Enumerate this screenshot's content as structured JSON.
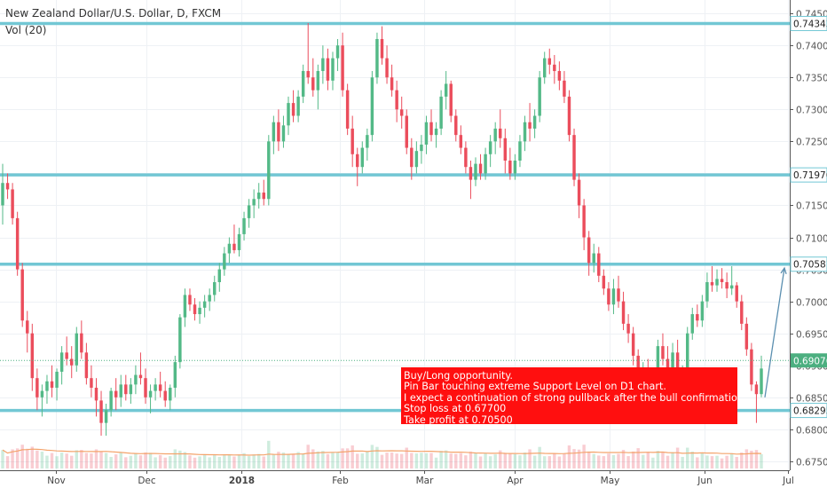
{
  "header": {
    "title": "New Zealand Dollar/U.S. Dollar, D, FXCM",
    "volume_label": "Vol (20)"
  },
  "annotation": {
    "lines": [
      "Buy/Long opportunity.",
      "Pin Bar touching extreme Support Level on D1 chart.",
      "I expect a continuation of strong pullback after the bull confirmation candle.",
      "Stop loss at 0.67700",
      "Take profit at 0.70500"
    ]
  },
  "colors": {
    "up": "#53b987",
    "down": "#eb4d5c",
    "level_line": "#72c7d4",
    "annotation_bg": "#ff0f0f",
    "current_price_label": "#4caf80",
    "volume_ma": "#f4a36b"
  },
  "chart_data": {
    "type": "candlestick",
    "symbol": "NZDUSD",
    "timeframe": "D",
    "x_ticks": [
      "Nov",
      "Dec",
      "2018",
      "Feb",
      "Mar",
      "Apr",
      "May",
      "Jun",
      "Jul"
    ],
    "y_ticks": [
      0.675,
      0.68,
      0.685,
      0.69,
      0.695,
      0.7,
      0.705,
      0.71,
      0.715,
      0.72,
      0.725,
      0.73,
      0.735,
      0.74,
      0.745
    ],
    "y_tick_labels": [
      "0.67500",
      "0.68000",
      "0.68500",
      "0.69000",
      "0.69500",
      "0.70000",
      "0.70500",
      "0.71000",
      "0.71500",
      "0.72000",
      "0.72500",
      "0.73000",
      "0.73500",
      "0.74000",
      "0.74500"
    ],
    "ylim": [
      0.6736,
      0.7471
    ],
    "horizontal_levels": [
      {
        "value": 0.74343,
        "label": "0.74343"
      },
      {
        "value": 0.71976,
        "label": "0.71976"
      },
      {
        "value": 0.70581,
        "label": "0.70581"
      },
      {
        "value": 0.68295,
        "label": "0.68295"
      }
    ],
    "current_price": {
      "value": 0.69076,
      "label": "0.69076"
    },
    "projection_arrow": {
      "from": 0.685,
      "to": 0.7052
    },
    "candles": [
      {
        "o": 0.715,
        "h": 0.7215,
        "l": 0.712,
        "c": 0.7185
      },
      {
        "o": 0.7185,
        "h": 0.72,
        "l": 0.716,
        "c": 0.7175
      },
      {
        "o": 0.7175,
        "h": 0.7185,
        "l": 0.712,
        "c": 0.713
      },
      {
        "o": 0.713,
        "h": 0.714,
        "l": 0.704,
        "c": 0.705
      },
      {
        "o": 0.705,
        "h": 0.706,
        "l": 0.696,
        "c": 0.697
      },
      {
        "o": 0.697,
        "h": 0.6985,
        "l": 0.692,
        "c": 0.695
      },
      {
        "o": 0.695,
        "h": 0.6965,
        "l": 0.686,
        "c": 0.688
      },
      {
        "o": 0.688,
        "h": 0.6895,
        "l": 0.683,
        "c": 0.685
      },
      {
        "o": 0.685,
        "h": 0.687,
        "l": 0.682,
        "c": 0.686
      },
      {
        "o": 0.686,
        "h": 0.6885,
        "l": 0.684,
        "c": 0.6875
      },
      {
        "o": 0.6875,
        "h": 0.69,
        "l": 0.685,
        "c": 0.6865
      },
      {
        "o": 0.6865,
        "h": 0.6895,
        "l": 0.6845,
        "c": 0.689
      },
      {
        "o": 0.689,
        "h": 0.693,
        "l": 0.687,
        "c": 0.692
      },
      {
        "o": 0.692,
        "h": 0.6945,
        "l": 0.69,
        "c": 0.691
      },
      {
        "o": 0.691,
        "h": 0.693,
        "l": 0.688,
        "c": 0.69
      },
      {
        "o": 0.69,
        "h": 0.696,
        "l": 0.689,
        "c": 0.695
      },
      {
        "o": 0.695,
        "h": 0.697,
        "l": 0.691,
        "c": 0.692
      },
      {
        "o": 0.692,
        "h": 0.6935,
        "l": 0.687,
        "c": 0.688
      },
      {
        "o": 0.688,
        "h": 0.69,
        "l": 0.685,
        "c": 0.6865
      },
      {
        "o": 0.6865,
        "h": 0.688,
        "l": 0.682,
        "c": 0.6845
      },
      {
        "o": 0.6845,
        "h": 0.686,
        "l": 0.679,
        "c": 0.681
      },
      {
        "o": 0.681,
        "h": 0.684,
        "l": 0.679,
        "c": 0.683
      },
      {
        "o": 0.683,
        "h": 0.6865,
        "l": 0.682,
        "c": 0.686
      },
      {
        "o": 0.686,
        "h": 0.688,
        "l": 0.683,
        "c": 0.685
      },
      {
        "o": 0.685,
        "h": 0.6885,
        "l": 0.6835,
        "c": 0.687
      },
      {
        "o": 0.687,
        "h": 0.6885,
        "l": 0.6845,
        "c": 0.6855
      },
      {
        "o": 0.6855,
        "h": 0.688,
        "l": 0.684,
        "c": 0.687
      },
      {
        "o": 0.687,
        "h": 0.69,
        "l": 0.6855,
        "c": 0.6885
      },
      {
        "o": 0.6885,
        "h": 0.692,
        "l": 0.687,
        "c": 0.688
      },
      {
        "o": 0.688,
        "h": 0.6895,
        "l": 0.684,
        "c": 0.685
      },
      {
        "o": 0.685,
        "h": 0.687,
        "l": 0.6825,
        "c": 0.686
      },
      {
        "o": 0.686,
        "h": 0.688,
        "l": 0.6845,
        "c": 0.687
      },
      {
        "o": 0.687,
        "h": 0.689,
        "l": 0.685,
        "c": 0.686
      },
      {
        "o": 0.686,
        "h": 0.6875,
        "l": 0.6835,
        "c": 0.6845
      },
      {
        "o": 0.6845,
        "h": 0.687,
        "l": 0.683,
        "c": 0.6865
      },
      {
        "o": 0.6865,
        "h": 0.6915,
        "l": 0.685,
        "c": 0.6905
      },
      {
        "o": 0.6905,
        "h": 0.698,
        "l": 0.6895,
        "c": 0.6975
      },
      {
        "o": 0.6975,
        "h": 0.702,
        "l": 0.696,
        "c": 0.701
      },
      {
        "o": 0.701,
        "h": 0.702,
        "l": 0.6985,
        "c": 0.6995
      },
      {
        "o": 0.6995,
        "h": 0.7005,
        "l": 0.697,
        "c": 0.698
      },
      {
        "o": 0.698,
        "h": 0.7,
        "l": 0.6965,
        "c": 0.699
      },
      {
        "o": 0.699,
        "h": 0.701,
        "l": 0.6975,
        "c": 0.7
      },
      {
        "o": 0.7,
        "h": 0.702,
        "l": 0.6985,
        "c": 0.701
      },
      {
        "o": 0.701,
        "h": 0.704,
        "l": 0.7,
        "c": 0.703
      },
      {
        "o": 0.703,
        "h": 0.706,
        "l": 0.7015,
        "c": 0.705
      },
      {
        "o": 0.705,
        "h": 0.7085,
        "l": 0.704,
        "c": 0.7075
      },
      {
        "o": 0.7075,
        "h": 0.71,
        "l": 0.706,
        "c": 0.709
      },
      {
        "o": 0.709,
        "h": 0.712,
        "l": 0.7075,
        "c": 0.708
      },
      {
        "o": 0.708,
        "h": 0.7115,
        "l": 0.707,
        "c": 0.7105
      },
      {
        "o": 0.7105,
        "h": 0.714,
        "l": 0.7095,
        "c": 0.713
      },
      {
        "o": 0.713,
        "h": 0.716,
        "l": 0.7115,
        "c": 0.715
      },
      {
        "o": 0.715,
        "h": 0.7175,
        "l": 0.713,
        "c": 0.716
      },
      {
        "o": 0.716,
        "h": 0.7185,
        "l": 0.7145,
        "c": 0.717
      },
      {
        "o": 0.717,
        "h": 0.719,
        "l": 0.715,
        "c": 0.716
      },
      {
        "o": 0.716,
        "h": 0.726,
        "l": 0.715,
        "c": 0.725
      },
      {
        "o": 0.725,
        "h": 0.729,
        "l": 0.723,
        "c": 0.728
      },
      {
        "o": 0.728,
        "h": 0.73,
        "l": 0.7235,
        "c": 0.725
      },
      {
        "o": 0.725,
        "h": 0.729,
        "l": 0.724,
        "c": 0.7275
      },
      {
        "o": 0.7275,
        "h": 0.732,
        "l": 0.726,
        "c": 0.731
      },
      {
        "o": 0.731,
        "h": 0.733,
        "l": 0.728,
        "c": 0.729
      },
      {
        "o": 0.729,
        "h": 0.733,
        "l": 0.728,
        "c": 0.732
      },
      {
        "o": 0.732,
        "h": 0.737,
        "l": 0.731,
        "c": 0.736
      },
      {
        "o": 0.736,
        "h": 0.7435,
        "l": 0.734,
        "c": 0.735
      },
      {
        "o": 0.735,
        "h": 0.738,
        "l": 0.732,
        "c": 0.733
      },
      {
        "o": 0.733,
        "h": 0.737,
        "l": 0.73,
        "c": 0.736
      },
      {
        "o": 0.736,
        "h": 0.74,
        "l": 0.734,
        "c": 0.738
      },
      {
        "o": 0.738,
        "h": 0.7395,
        "l": 0.733,
        "c": 0.7345
      },
      {
        "o": 0.7345,
        "h": 0.739,
        "l": 0.733,
        "c": 0.738
      },
      {
        "o": 0.738,
        "h": 0.741,
        "l": 0.736,
        "c": 0.74
      },
      {
        "o": 0.74,
        "h": 0.742,
        "l": 0.732,
        "c": 0.733
      },
      {
        "o": 0.733,
        "h": 0.734,
        "l": 0.726,
        "c": 0.727
      },
      {
        "o": 0.727,
        "h": 0.729,
        "l": 0.721,
        "c": 0.723
      },
      {
        "o": 0.723,
        "h": 0.724,
        "l": 0.718,
        "c": 0.721
      },
      {
        "o": 0.721,
        "h": 0.725,
        "l": 0.72,
        "c": 0.724
      },
      {
        "o": 0.724,
        "h": 0.727,
        "l": 0.722,
        "c": 0.726
      },
      {
        "o": 0.726,
        "h": 0.736,
        "l": 0.725,
        "c": 0.735
      },
      {
        "o": 0.735,
        "h": 0.742,
        "l": 0.734,
        "c": 0.741
      },
      {
        "o": 0.741,
        "h": 0.743,
        "l": 0.737,
        "c": 0.738
      },
      {
        "o": 0.738,
        "h": 0.74,
        "l": 0.734,
        "c": 0.735
      },
      {
        "o": 0.735,
        "h": 0.737,
        "l": 0.732,
        "c": 0.733
      },
      {
        "o": 0.733,
        "h": 0.7345,
        "l": 0.728,
        "c": 0.73
      },
      {
        "o": 0.73,
        "h": 0.732,
        "l": 0.727,
        "c": 0.729
      },
      {
        "o": 0.729,
        "h": 0.73,
        "l": 0.723,
        "c": 0.724
      },
      {
        "o": 0.724,
        "h": 0.7255,
        "l": 0.719,
        "c": 0.721
      },
      {
        "o": 0.721,
        "h": 0.725,
        "l": 0.72,
        "c": 0.7235
      },
      {
        "o": 0.7235,
        "h": 0.726,
        "l": 0.7215,
        "c": 0.7245
      },
      {
        "o": 0.7245,
        "h": 0.729,
        "l": 0.723,
        "c": 0.728
      },
      {
        "o": 0.728,
        "h": 0.73,
        "l": 0.725,
        "c": 0.726
      },
      {
        "o": 0.726,
        "h": 0.728,
        "l": 0.724,
        "c": 0.727
      },
      {
        "o": 0.727,
        "h": 0.733,
        "l": 0.726,
        "c": 0.732
      },
      {
        "o": 0.732,
        "h": 0.736,
        "l": 0.73,
        "c": 0.734
      },
      {
        "o": 0.734,
        "h": 0.7345,
        "l": 0.728,
        "c": 0.729
      },
      {
        "o": 0.729,
        "h": 0.73,
        "l": 0.725,
        "c": 0.726
      },
      {
        "o": 0.726,
        "h": 0.7275,
        "l": 0.723,
        "c": 0.724
      },
      {
        "o": 0.724,
        "h": 0.725,
        "l": 0.72,
        "c": 0.721
      },
      {
        "o": 0.721,
        "h": 0.722,
        "l": 0.716,
        "c": 0.719
      },
      {
        "o": 0.719,
        "h": 0.7225,
        "l": 0.718,
        "c": 0.7215
      },
      {
        "o": 0.7215,
        "h": 0.723,
        "l": 0.719,
        "c": 0.72
      },
      {
        "o": 0.72,
        "h": 0.724,
        "l": 0.719,
        "c": 0.723
      },
      {
        "o": 0.723,
        "h": 0.726,
        "l": 0.721,
        "c": 0.725
      },
      {
        "o": 0.725,
        "h": 0.728,
        "l": 0.723,
        "c": 0.727
      },
      {
        "o": 0.727,
        "h": 0.73,
        "l": 0.724,
        "c": 0.7255
      },
      {
        "o": 0.7255,
        "h": 0.727,
        "l": 0.72,
        "c": 0.722
      },
      {
        "o": 0.722,
        "h": 0.724,
        "l": 0.719,
        "c": 0.72
      },
      {
        "o": 0.72,
        "h": 0.723,
        "l": 0.719,
        "c": 0.722
      },
      {
        "o": 0.722,
        "h": 0.726,
        "l": 0.721,
        "c": 0.725
      },
      {
        "o": 0.725,
        "h": 0.729,
        "l": 0.7235,
        "c": 0.728
      },
      {
        "o": 0.728,
        "h": 0.731,
        "l": 0.725,
        "c": 0.727
      },
      {
        "o": 0.727,
        "h": 0.73,
        "l": 0.7255,
        "c": 0.729
      },
      {
        "o": 0.729,
        "h": 0.736,
        "l": 0.728,
        "c": 0.735
      },
      {
        "o": 0.735,
        "h": 0.739,
        "l": 0.734,
        "c": 0.738
      },
      {
        "o": 0.738,
        "h": 0.7395,
        "l": 0.7355,
        "c": 0.737
      },
      {
        "o": 0.737,
        "h": 0.7385,
        "l": 0.734,
        "c": 0.736
      },
      {
        "o": 0.736,
        "h": 0.7375,
        "l": 0.733,
        "c": 0.7345
      },
      {
        "o": 0.7345,
        "h": 0.736,
        "l": 0.731,
        "c": 0.732
      },
      {
        "o": 0.732,
        "h": 0.733,
        "l": 0.725,
        "c": 0.726
      },
      {
        "o": 0.726,
        "h": 0.727,
        "l": 0.718,
        "c": 0.719
      },
      {
        "o": 0.719,
        "h": 0.72,
        "l": 0.713,
        "c": 0.715
      },
      {
        "o": 0.715,
        "h": 0.716,
        "l": 0.708,
        "c": 0.71
      },
      {
        "o": 0.71,
        "h": 0.711,
        "l": 0.704,
        "c": 0.706
      },
      {
        "o": 0.706,
        "h": 0.709,
        "l": 0.7045,
        "c": 0.7075
      },
      {
        "o": 0.7075,
        "h": 0.7085,
        "l": 0.703,
        "c": 0.704
      },
      {
        "o": 0.704,
        "h": 0.705,
        "l": 0.701,
        "c": 0.702
      },
      {
        "o": 0.702,
        "h": 0.703,
        "l": 0.6985,
        "c": 0.6995
      },
      {
        "o": 0.6995,
        "h": 0.7035,
        "l": 0.698,
        "c": 0.702
      },
      {
        "o": 0.702,
        "h": 0.704,
        "l": 0.699,
        "c": 0.7
      },
      {
        "o": 0.7,
        "h": 0.7015,
        "l": 0.6955,
        "c": 0.6965
      },
      {
        "o": 0.6965,
        "h": 0.698,
        "l": 0.6935,
        "c": 0.695
      },
      {
        "o": 0.695,
        "h": 0.696,
        "l": 0.69,
        "c": 0.6915
      },
      {
        "o": 0.6915,
        "h": 0.6925,
        "l": 0.686,
        "c": 0.688
      },
      {
        "o": 0.688,
        "h": 0.6905,
        "l": 0.6855,
        "c": 0.689
      },
      {
        "o": 0.689,
        "h": 0.691,
        "l": 0.6855,
        "c": 0.6865
      },
      {
        "o": 0.6865,
        "h": 0.689,
        "l": 0.685,
        "c": 0.688
      },
      {
        "o": 0.688,
        "h": 0.694,
        "l": 0.687,
        "c": 0.693
      },
      {
        "o": 0.693,
        "h": 0.695,
        "l": 0.69,
        "c": 0.691
      },
      {
        "o": 0.691,
        "h": 0.693,
        "l": 0.688,
        "c": 0.689
      },
      {
        "o": 0.689,
        "h": 0.6935,
        "l": 0.6875,
        "c": 0.692
      },
      {
        "o": 0.692,
        "h": 0.694,
        "l": 0.687,
        "c": 0.688
      },
      {
        "o": 0.688,
        "h": 0.69,
        "l": 0.686,
        "c": 0.689
      },
      {
        "o": 0.689,
        "h": 0.696,
        "l": 0.688,
        "c": 0.695
      },
      {
        "o": 0.695,
        "h": 0.699,
        "l": 0.694,
        "c": 0.698
      },
      {
        "o": 0.698,
        "h": 0.6995,
        "l": 0.696,
        "c": 0.697
      },
      {
        "o": 0.697,
        "h": 0.701,
        "l": 0.696,
        "c": 0.7
      },
      {
        "o": 0.7,
        "h": 0.7045,
        "l": 0.699,
        "c": 0.703
      },
      {
        "o": 0.703,
        "h": 0.7055,
        "l": 0.7015,
        "c": 0.7025
      },
      {
        "o": 0.7025,
        "h": 0.705,
        "l": 0.7015,
        "c": 0.7035
      },
      {
        "o": 0.7035,
        "h": 0.7052,
        "l": 0.702,
        "c": 0.703
      },
      {
        "o": 0.703,
        "h": 0.7045,
        "l": 0.7005,
        "c": 0.702
      },
      {
        "o": 0.702,
        "h": 0.7055,
        "l": 0.701,
        "c": 0.7025
      },
      {
        "o": 0.7025,
        "h": 0.703,
        "l": 0.699,
        "c": 0.7
      },
      {
        "o": 0.7,
        "h": 0.701,
        "l": 0.6955,
        "c": 0.6965
      },
      {
        "o": 0.6965,
        "h": 0.6975,
        "l": 0.6915,
        "c": 0.6925
      },
      {
        "o": 0.6925,
        "h": 0.6935,
        "l": 0.686,
        "c": 0.687
      },
      {
        "o": 0.687,
        "h": 0.6875,
        "l": 0.681,
        "c": 0.6855
      },
      {
        "o": 0.6855,
        "h": 0.6915,
        "l": 0.685,
        "c": 0.6895
      }
    ]
  }
}
